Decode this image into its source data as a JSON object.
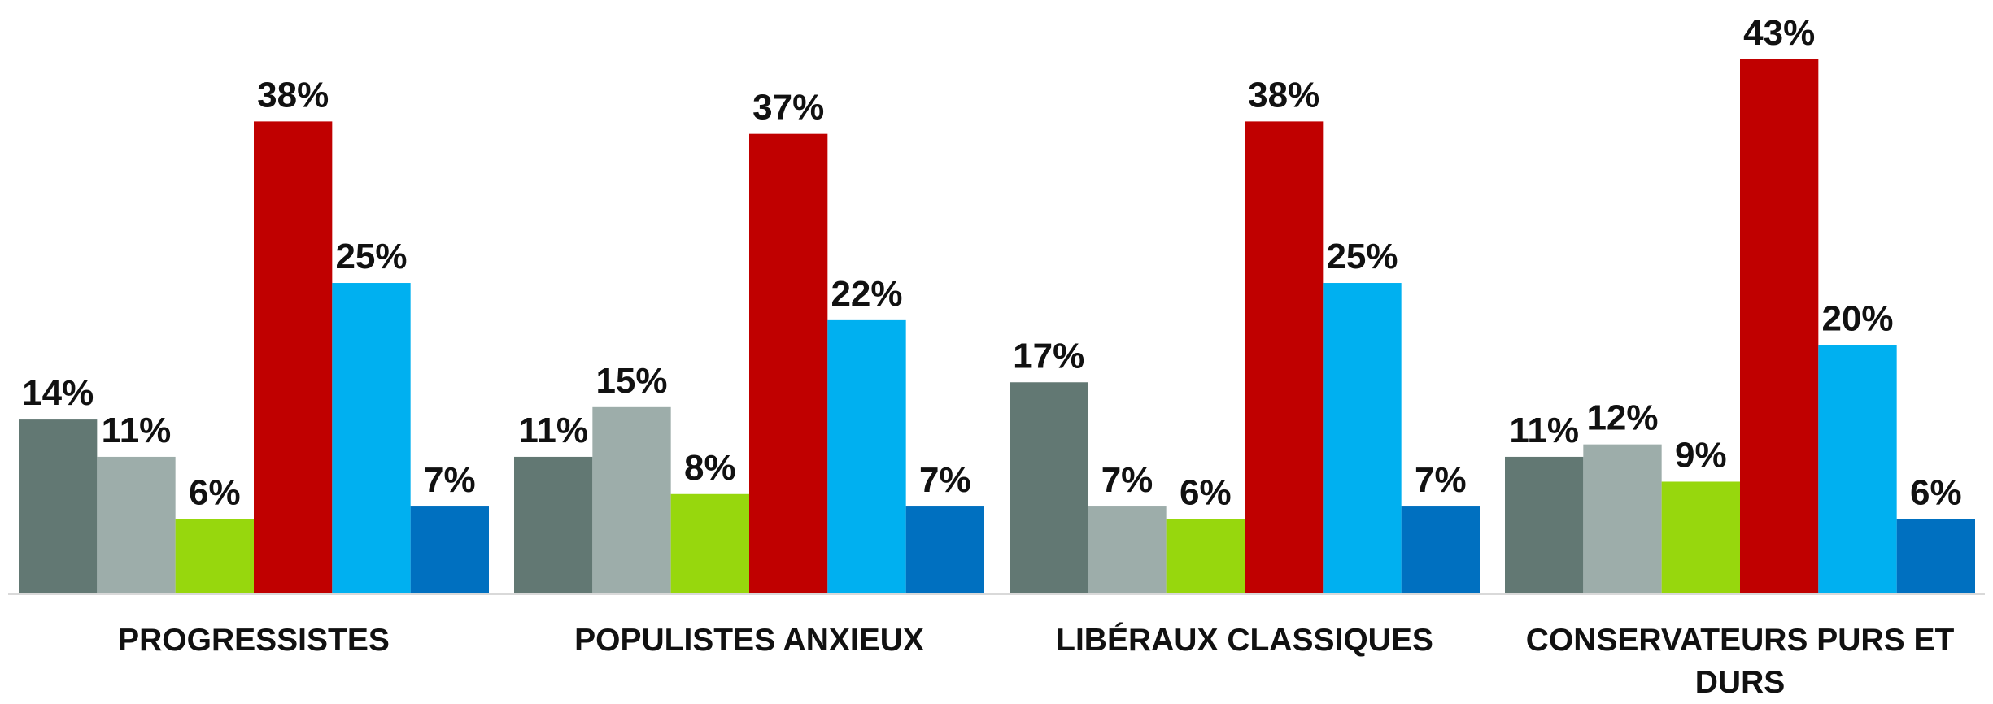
{
  "chart_data": {
    "type": "bar",
    "categories": [
      "PROGRESSISTES",
      "POPULISTES ANXIEUX",
      "LIBÉRAUX CLASSIQUES",
      "CONSERVATEURS PURS ET DURS"
    ],
    "series": [
      {
        "color": "#627873",
        "values": [
          14,
          11,
          17,
          11
        ],
        "value_labels": [
          "14%",
          "11%",
          "17%",
          "11%"
        ]
      },
      {
        "color": "#9dadaa",
        "values": [
          11,
          15,
          7,
          12
        ],
        "value_labels": [
          "11%",
          "15%",
          "7%",
          "12%"
        ]
      },
      {
        "color": "#97d70d",
        "values": [
          6,
          8,
          6,
          9
        ],
        "value_labels": [
          "6%",
          "8%",
          "6%",
          "9%"
        ]
      },
      {
        "color": "#c00000",
        "values": [
          38,
          37,
          38,
          43
        ],
        "value_labels": [
          "38%",
          "37%",
          "38%",
          "43%"
        ]
      },
      {
        "color": "#00b0f0",
        "values": [
          25,
          22,
          25,
          20
        ],
        "value_labels": [
          "25%",
          "22%",
          "25%",
          "20%"
        ]
      },
      {
        "color": "#0070c0",
        "values": [
          7,
          7,
          7,
          6
        ],
        "value_labels": [
          "7%",
          "7%",
          "7%",
          "6%"
        ]
      }
    ]
  }
}
